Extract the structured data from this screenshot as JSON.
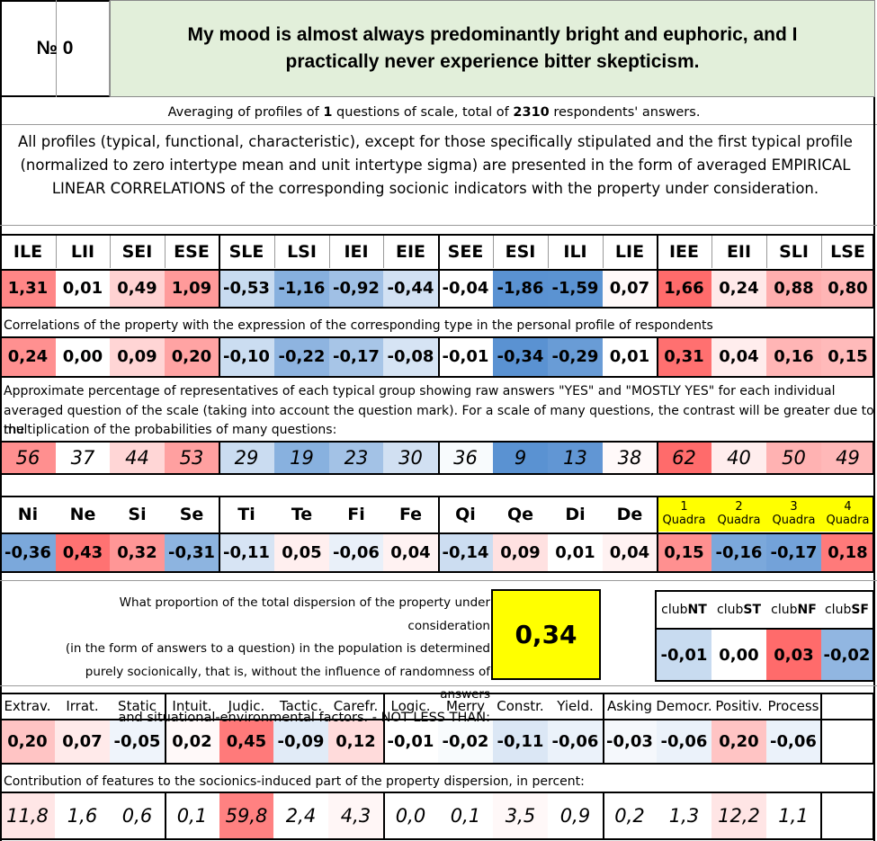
{
  "header": {
    "number": "№ 0",
    "title": "My mood is almost always predominantly bright and euphoric, and I practically never experience bitter skepticism."
  },
  "summary": {
    "p1": "Averaging of profiles of ",
    "n_questions": "1",
    "p2": " questions of scale, total of ",
    "n_respondents": "2310",
    "p3": " respondents' answers."
  },
  "description": "All profiles (typical, functional, characteristic), except for those specifically stipulated and the first typical profile (normalized to zero intertype mean and unit intertype sigma) are presented in the form of averaged EMPIRICAL LINEAR CORRELATIONS of the corresponding socionic indicators with the property under consideration.",
  "types": {
    "headers": [
      "ILE",
      "LII",
      "SEI",
      "ESE",
      "SLE",
      "LSI",
      "IEI",
      "EIE",
      "SEE",
      "ESI",
      "ILI",
      "LIE",
      "IEE",
      "EII",
      "SLI",
      "LSE"
    ],
    "profile": [
      "1,31",
      "0,01",
      "0,49",
      "1,09",
      "-0,53",
      "-1,16",
      "-0,92",
      "-0,44",
      "-0,04",
      "-1,86",
      "-1,59",
      "0,07",
      "1,66",
      "0,24",
      "0,88",
      "0,80"
    ],
    "correlations_note": "Correlations of the property with the expression of the corresponding type in the personal profile of respondents",
    "correlations": [
      "0,24",
      "0,00",
      "0,09",
      "0,20",
      "-0,10",
      "-0,22",
      "-0,17",
      "-0,08",
      "-0,01",
      "-0,34",
      "-0,29",
      "0,01",
      "0,31",
      "0,04",
      "0,16",
      "0,15"
    ],
    "percent_note": [
      "Approximate percentage of representatives of each typical group showing raw answers \"YES\" and \"MOSTLY YES\" for each individual",
      "averaged question of the scale (taking into account the question mark). For a scale of many questions, the contrast will be greater due to the",
      "multiplication of the probabilities of many questions:"
    ],
    "percentages": [
      "56",
      "37",
      "44",
      "53",
      "29",
      "19",
      "23",
      "30",
      "36",
      "9",
      "13",
      "38",
      "62",
      "40",
      "50",
      "49"
    ]
  },
  "functions": {
    "headers": [
      "Ni",
      "Ne",
      "Si",
      "Se",
      "Ti",
      "Te",
      "Fi",
      "Fe",
      "Qi",
      "Qe",
      "Di",
      "De"
    ],
    "values": [
      "-0,36",
      "0,43",
      "0,32",
      "-0,31",
      "-0,11",
      "0,05",
      "-0,06",
      "0,04",
      "-0,14",
      "0,09",
      "0,01",
      "0,04"
    ]
  },
  "quadras": {
    "numbers": [
      "1",
      "2",
      "3",
      "4"
    ],
    "label": "Quadra",
    "values": [
      "0,15",
      "-0,16",
      "-0,17",
      "0,18"
    ]
  },
  "dispersion": {
    "lines": [
      "What proportion of the total dispersion of the property under consideration",
      "(in the form of answers to a question) in the population is determined",
      "purely socionically, that is, without the influence of randomness of answers",
      "and situational-environmental factors. - NOT LESS THAN:"
    ],
    "value": "0,34"
  },
  "clubs": {
    "prefix": "club",
    "names": [
      "NT",
      "ST",
      "NF",
      "SF"
    ],
    "values": [
      "-0,01",
      "0,00",
      "0,03",
      "-0,02"
    ]
  },
  "features": {
    "headers": [
      "Extrav.",
      "Irrat.",
      "Static",
      "Intuit.",
      "Judic.",
      "Tactic.",
      "Carefr.",
      "Logic.",
      "Merry",
      "Constr.",
      "Yield.",
      "Asking",
      "Democr.",
      "Positiv.",
      "Process"
    ],
    "values": [
      "0,20",
      "0,07",
      "-0,05",
      "0,02",
      "0,45",
      "-0,09",
      "0,12",
      "-0,01",
      "-0,02",
      "-0,11",
      "-0,06",
      "-0,03",
      "-0,06",
      "0,20",
      "-0,06"
    ],
    "contribution_note": "Contribution of features to the sociоnics-induced part of the property dispersion, in percent:",
    "contributions": [
      "11,8",
      "1,6",
      "0,6",
      "0,1",
      "59,8",
      "2,4",
      "4,3",
      "0,0",
      "0,1",
      "3,5",
      "0,9",
      "0,2",
      "1,3",
      "12,2",
      "1,1"
    ]
  },
  "colors": {
    "title_bg": "#e2efda",
    "highlight_yellow": "#ffff00"
  }
}
